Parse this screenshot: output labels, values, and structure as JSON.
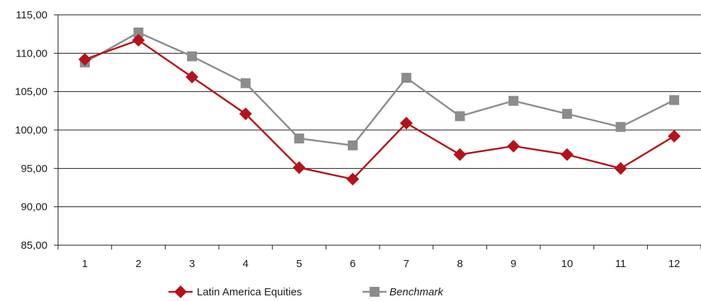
{
  "chart_data": {
    "type": "line",
    "title": "",
    "xlabel": "",
    "ylabel": "",
    "categories": [
      "1",
      "2",
      "3",
      "4",
      "5",
      "6",
      "7",
      "8",
      "9",
      "10",
      "11",
      "12"
    ],
    "ylim": [
      85,
      115
    ],
    "y_ticks": [
      "85,00",
      "90,00",
      "95,00",
      "100,00",
      "105,00",
      "110,00",
      "115,00"
    ],
    "grid": "horizontal",
    "legend_position": "bottom",
    "series": [
      {
        "name": "Latin America Equities",
        "marker": "diamond",
        "color": "#b5121b",
        "values": [
          109.2,
          111.7,
          106.9,
          102.1,
          95.1,
          93.6,
          100.9,
          96.8,
          97.9,
          96.8,
          95.0,
          99.2
        ]
      },
      {
        "name": "Benchmark",
        "marker": "square",
        "color": "#8c8c8c",
        "italic": true,
        "values": [
          108.8,
          112.7,
          109.6,
          106.1,
          98.9,
          98.0,
          106.8,
          101.8,
          103.8,
          102.1,
          100.4,
          103.9
        ]
      }
    ]
  }
}
